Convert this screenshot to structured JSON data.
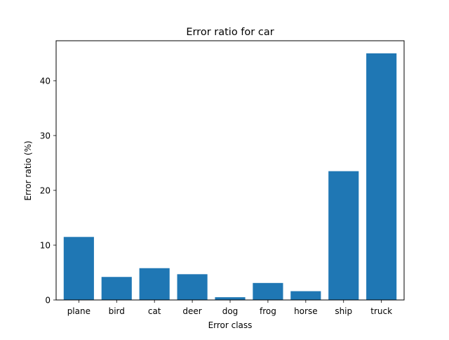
{
  "chart_data": {
    "type": "bar",
    "title": "Error ratio for car",
    "xlabel": "Error class",
    "ylabel": "Error ratio (%)",
    "categories": [
      "plane",
      "bird",
      "cat",
      "deer",
      "dog",
      "frog",
      "horse",
      "ship",
      "truck"
    ],
    "values": [
      11.5,
      4.2,
      5.8,
      4.7,
      0.5,
      3.1,
      1.6,
      23.5,
      45.0
    ],
    "ylim": [
      0,
      47.3
    ],
    "yticks": [
      0,
      10,
      20,
      30,
      40
    ],
    "grid": false,
    "bar_color": "#1f77b4"
  }
}
